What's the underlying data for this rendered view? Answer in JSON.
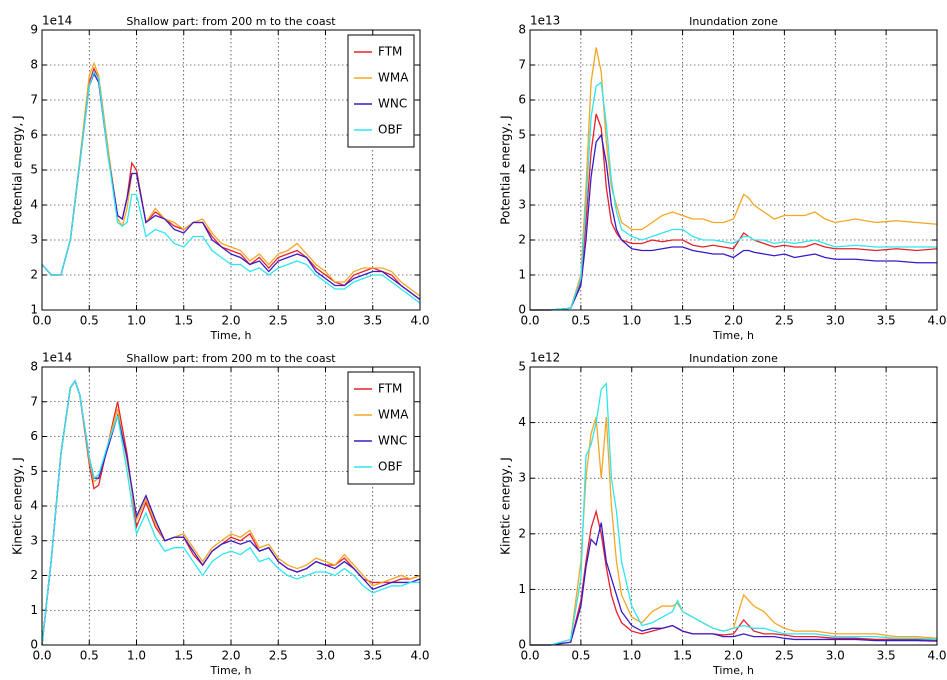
{
  "chart_data": [
    {
      "type": "line",
      "title": "Shallow part: from 200 m to the coast",
      "xlabel": "Time, h",
      "ylabel": "Potential energy, J",
      "y_offset": "1e14",
      "x": [
        0,
        0.1,
        0.2,
        0.3,
        0.4,
        0.5,
        0.55,
        0.6,
        0.7,
        0.8,
        0.85,
        0.9,
        0.95,
        1.0,
        1.1,
        1.2,
        1.3,
        1.4,
        1.5,
        1.6,
        1.7,
        1.8,
        1.9,
        2.0,
        2.1,
        2.2,
        2.3,
        2.4,
        2.5,
        2.6,
        2.7,
        2.8,
        2.9,
        3.0,
        3.1,
        3.2,
        3.3,
        3.4,
        3.5,
        3.6,
        3.7,
        3.8,
        3.9,
        4.0
      ],
      "series": [
        {
          "name": "FTM",
          "color": "#e8202a",
          "values": [
            2.3,
            2.0,
            2.0,
            3.0,
            5.2,
            7.5,
            7.9,
            7.6,
            5.5,
            3.7,
            3.6,
            4.2,
            5.2,
            5.0,
            3.5,
            3.8,
            3.6,
            3.4,
            3.3,
            3.5,
            3.5,
            3.1,
            2.8,
            2.7,
            2.6,
            2.3,
            2.5,
            2.2,
            2.5,
            2.6,
            2.7,
            2.5,
            2.2,
            2.0,
            1.8,
            1.7,
            2.0,
            2.1,
            2.2,
            2.1,
            2.0,
            1.7,
            1.5,
            1.3
          ]
        },
        {
          "name": "WMA",
          "color": "#f5a623",
          "values": [
            2.3,
            2.0,
            2.0,
            3.0,
            5.3,
            7.7,
            8.05,
            7.7,
            5.6,
            3.6,
            3.4,
            3.9,
            4.9,
            4.9,
            3.5,
            3.9,
            3.6,
            3.5,
            3.3,
            3.5,
            3.6,
            3.2,
            2.9,
            2.8,
            2.7,
            2.4,
            2.6,
            2.3,
            2.6,
            2.7,
            2.9,
            2.6,
            2.3,
            2.1,
            1.8,
            1.8,
            2.1,
            2.2,
            2.2,
            2.2,
            2.1,
            1.8,
            1.6,
            1.4
          ]
        },
        {
          "name": "WNC",
          "color": "#3a1ac8",
          "values": [
            2.3,
            2.0,
            2.0,
            3.0,
            5.2,
            7.4,
            7.75,
            7.5,
            5.4,
            3.7,
            3.6,
            4.2,
            4.9,
            4.9,
            3.5,
            3.7,
            3.6,
            3.3,
            3.2,
            3.5,
            3.5,
            3.0,
            2.8,
            2.6,
            2.5,
            2.3,
            2.4,
            2.1,
            2.4,
            2.5,
            2.6,
            2.5,
            2.1,
            1.9,
            1.7,
            1.7,
            1.9,
            2.0,
            2.1,
            2.1,
            1.9,
            1.7,
            1.5,
            1.3
          ]
        },
        {
          "name": "OBF",
          "color": "#2ee6f0",
          "values": [
            2.3,
            2.0,
            2.0,
            3.0,
            5.2,
            7.4,
            7.8,
            7.6,
            5.4,
            3.5,
            3.4,
            3.5,
            4.3,
            4.3,
            3.1,
            3.3,
            3.2,
            2.9,
            2.8,
            3.1,
            3.1,
            2.7,
            2.5,
            2.3,
            2.3,
            2.1,
            2.2,
            2.0,
            2.2,
            2.3,
            2.4,
            2.3,
            2.0,
            1.8,
            1.6,
            1.6,
            1.8,
            1.9,
            2.0,
            2.0,
            1.8,
            1.6,
            1.4,
            1.2
          ]
        }
      ],
      "xlim": [
        0,
        4
      ],
      "ylim": [
        1,
        9
      ],
      "xticks": [
        {
          "value": 0,
          "label": "0.0"
        },
        {
          "value": 0.5,
          "label": "0.5"
        },
        {
          "value": 1,
          "label": "1.0"
        },
        {
          "value": 1.5,
          "label": "1.5"
        },
        {
          "value": 2,
          "label": "2.0"
        },
        {
          "value": 2.5,
          "label": "2.5"
        },
        {
          "value": 3,
          "label": "3.0"
        },
        {
          "value": 3.5,
          "label": "3.5"
        },
        {
          "value": 4,
          "label": "4.0"
        }
      ],
      "yticks": [
        1,
        2,
        3,
        4,
        5,
        6,
        7,
        8,
        9
      ],
      "grid": true,
      "legend": "upper right"
    },
    {
      "type": "line",
      "title": "Inundation zone",
      "xlabel": "Time, h",
      "ylabel": "Potential energy, J",
      "y_offset": "1e13",
      "x": [
        0,
        0.2,
        0.4,
        0.5,
        0.55,
        0.6,
        0.65,
        0.7,
        0.75,
        0.8,
        0.85,
        0.9,
        1.0,
        1.1,
        1.2,
        1.3,
        1.4,
        1.5,
        1.6,
        1.7,
        1.8,
        1.9,
        2.0,
        2.1,
        2.15,
        2.2,
        2.3,
        2.4,
        2.5,
        2.6,
        2.7,
        2.8,
        2.9,
        3.0,
        3.2,
        3.4,
        3.6,
        3.8,
        4.0
      ],
      "series": [
        {
          "color": "#e8202a",
          "values": [
            0,
            0,
            0.05,
            0.8,
            2.5,
            4.5,
            5.6,
            5.2,
            3.5,
            2.5,
            2.2,
            2.0,
            1.9,
            1.9,
            2.0,
            1.95,
            2.0,
            2.0,
            1.85,
            1.8,
            1.85,
            1.8,
            1.75,
            2.2,
            2.1,
            2.0,
            1.9,
            1.8,
            1.85,
            1.8,
            1.8,
            1.9,
            1.8,
            1.75,
            1.75,
            1.7,
            1.75,
            1.7,
            1.75
          ]
        },
        {
          "color": "#f5a623",
          "values": [
            0,
            0,
            0.05,
            1.0,
            3.5,
            6.5,
            7.5,
            6.8,
            4.8,
            3.5,
            3.0,
            2.5,
            2.3,
            2.3,
            2.5,
            2.7,
            2.8,
            2.7,
            2.6,
            2.6,
            2.5,
            2.5,
            2.6,
            3.3,
            3.2,
            3.0,
            2.8,
            2.6,
            2.7,
            2.7,
            2.7,
            2.8,
            2.6,
            2.5,
            2.6,
            2.5,
            2.55,
            2.5,
            2.45
          ]
        },
        {
          "color": "#3a1ac8",
          "values": [
            0,
            0,
            0.05,
            0.7,
            2.0,
            3.8,
            4.8,
            5.0,
            4.2,
            3.0,
            2.3,
            2.0,
            1.75,
            1.7,
            1.7,
            1.75,
            1.8,
            1.8,
            1.7,
            1.65,
            1.6,
            1.6,
            1.5,
            1.7,
            1.7,
            1.65,
            1.6,
            1.55,
            1.6,
            1.5,
            1.55,
            1.6,
            1.5,
            1.45,
            1.45,
            1.4,
            1.4,
            1.35,
            1.35
          ]
        },
        {
          "color": "#2ee6f0",
          "values": [
            0,
            0,
            0.05,
            0.9,
            3.0,
            5.5,
            6.4,
            6.5,
            5.3,
            3.7,
            2.8,
            2.3,
            2.1,
            2.0,
            2.1,
            2.2,
            2.3,
            2.3,
            2.1,
            2.0,
            2.0,
            1.95,
            1.9,
            2.1,
            2.1,
            2.0,
            2.0,
            1.9,
            1.95,
            1.9,
            1.95,
            2.0,
            1.9,
            1.8,
            1.85,
            1.8,
            1.8,
            1.8,
            1.8
          ]
        }
      ],
      "xlim": [
        0,
        4
      ],
      "ylim": [
        0,
        8
      ],
      "xticks": [
        {
          "value": 0,
          "label": "0.0"
        },
        {
          "value": 0.5,
          "label": "0.5"
        },
        {
          "value": 1,
          "label": "1.0"
        },
        {
          "value": 1.5,
          "label": "1.5"
        },
        {
          "value": 2,
          "label": "2.0"
        },
        {
          "value": 2.5,
          "label": "2.5"
        },
        {
          "value": 3,
          "label": "3.0"
        },
        {
          "value": 3.5,
          "label": "3.5"
        },
        {
          "value": 4,
          "label": "4.0"
        }
      ],
      "yticks": [
        0,
        1,
        2,
        3,
        4,
        5,
        6,
        7,
        8
      ],
      "grid": true
    },
    {
      "type": "line",
      "title": "Shallow part: from 200 m to the coast",
      "xlabel": "Time, h",
      "ylabel": "Kinetic energy, J",
      "y_offset": "1e14",
      "x": [
        0,
        0.1,
        0.2,
        0.3,
        0.35,
        0.4,
        0.5,
        0.55,
        0.6,
        0.7,
        0.8,
        0.9,
        1.0,
        1.1,
        1.2,
        1.3,
        1.4,
        1.5,
        1.6,
        1.7,
        1.8,
        1.9,
        2.0,
        2.1,
        2.2,
        2.3,
        2.4,
        2.5,
        2.6,
        2.7,
        2.8,
        2.9,
        3.0,
        3.1,
        3.2,
        3.3,
        3.4,
        3.5,
        3.6,
        3.7,
        3.8,
        3.9,
        4.0
      ],
      "series": [
        {
          "name": "FTM",
          "color": "#e8202a",
          "values": [
            0,
            2.5,
            5.5,
            7.4,
            7.6,
            7.2,
            5.2,
            4.5,
            4.6,
            5.8,
            7.0,
            5.5,
            3.4,
            4.1,
            3.4,
            3.0,
            3.1,
            3.1,
            2.6,
            2.3,
            2.7,
            2.9,
            3.1,
            3.0,
            3.2,
            2.7,
            2.8,
            2.4,
            2.2,
            2.1,
            2.2,
            2.4,
            2.3,
            2.3,
            2.5,
            2.2,
            1.9,
            1.8,
            1.8,
            1.8,
            1.9,
            1.9,
            2.0
          ]
        },
        {
          "name": "WMA",
          "color": "#f5a623",
          "values": [
            0,
            2.5,
            5.5,
            7.4,
            7.6,
            7.2,
            5.3,
            4.7,
            4.8,
            5.8,
            6.8,
            5.3,
            3.6,
            4.2,
            3.5,
            3.0,
            3.1,
            3.2,
            2.8,
            2.4,
            2.8,
            3.0,
            3.2,
            3.1,
            3.3,
            2.8,
            2.9,
            2.5,
            2.3,
            2.2,
            2.3,
            2.5,
            2.4,
            2.3,
            2.6,
            2.3,
            2.0,
            1.7,
            1.8,
            1.9,
            2.0,
            1.9,
            2.0
          ]
        },
        {
          "name": "WNC",
          "color": "#3a1ac8",
          "values": [
            0,
            2.5,
            5.5,
            7.4,
            7.6,
            7.2,
            5.4,
            4.8,
            4.8,
            5.7,
            6.6,
            5.4,
            3.7,
            4.3,
            3.6,
            3.0,
            3.1,
            3.1,
            2.7,
            2.3,
            2.7,
            2.9,
            3.0,
            2.9,
            3.0,
            2.7,
            2.8,
            2.4,
            2.2,
            2.1,
            2.2,
            2.4,
            2.3,
            2.2,
            2.4,
            2.2,
            1.9,
            1.6,
            1.7,
            1.8,
            1.8,
            1.8,
            1.9
          ]
        },
        {
          "name": "OBF",
          "color": "#2ee6f0",
          "values": [
            0,
            2.5,
            5.5,
            7.4,
            7.6,
            7.2,
            5.4,
            4.8,
            4.9,
            5.8,
            6.6,
            5.0,
            3.2,
            3.8,
            3.1,
            2.7,
            2.8,
            2.8,
            2.4,
            2.0,
            2.4,
            2.6,
            2.7,
            2.6,
            2.8,
            2.4,
            2.5,
            2.2,
            2.0,
            1.9,
            2.0,
            2.1,
            2.1,
            2.0,
            2.2,
            2.0,
            1.7,
            1.5,
            1.6,
            1.7,
            1.7,
            1.8,
            1.8
          ]
        }
      ],
      "xlim": [
        0,
        4
      ],
      "ylim": [
        0,
        8
      ],
      "xticks": [
        {
          "value": 0,
          "label": "0.0"
        },
        {
          "value": 0.5,
          "label": "0.5"
        },
        {
          "value": 1,
          "label": "1.0"
        },
        {
          "value": 1.5,
          "label": "1.5"
        },
        {
          "value": 2,
          "label": "2.0"
        },
        {
          "value": 2.5,
          "label": "2.5"
        },
        {
          "value": 3,
          "label": "3.0"
        },
        {
          "value": 3.5,
          "label": "3.5"
        },
        {
          "value": 4,
          "label": "4.0"
        }
      ],
      "yticks": [
        0,
        1,
        2,
        3,
        4,
        5,
        6,
        7,
        8
      ],
      "grid": true,
      "legend": "upper right"
    },
    {
      "type": "line",
      "title": "Inundation zone",
      "xlabel": "Time, h",
      "ylabel": "Kinetic energy, J",
      "y_offset": "1e12",
      "x": [
        0,
        0.2,
        0.4,
        0.5,
        0.55,
        0.6,
        0.65,
        0.7,
        0.75,
        0.8,
        0.85,
        0.9,
        1.0,
        1.1,
        1.2,
        1.3,
        1.4,
        1.45,
        1.5,
        1.6,
        1.7,
        1.8,
        1.9,
        2.0,
        2.1,
        2.2,
        2.3,
        2.4,
        2.5,
        2.6,
        2.8,
        3.0,
        3.2,
        3.4,
        3.6,
        3.8,
        4.0
      ],
      "series": [
        {
          "color": "#e8202a",
          "values": [
            0,
            0,
            0.05,
            0.8,
            1.5,
            2.1,
            2.4,
            2.0,
            1.4,
            0.9,
            0.6,
            0.4,
            0.25,
            0.2,
            0.25,
            0.3,
            0.35,
            0.3,
            0.25,
            0.2,
            0.2,
            0.2,
            0.18,
            0.2,
            0.45,
            0.25,
            0.2,
            0.2,
            0.18,
            0.15,
            0.15,
            0.12,
            0.12,
            0.1,
            0.1,
            0.1,
            0.08
          ]
        },
        {
          "color": "#f5a623",
          "values": [
            0,
            0,
            0.1,
            1.5,
            3.0,
            3.8,
            4.1,
            3.0,
            4.1,
            2.5,
            1.5,
            0.9,
            0.5,
            0.4,
            0.6,
            0.7,
            0.7,
            0.75,
            0.6,
            0.5,
            0.4,
            0.3,
            0.25,
            0.3,
            0.9,
            0.7,
            0.6,
            0.4,
            0.3,
            0.25,
            0.25,
            0.2,
            0.2,
            0.2,
            0.15,
            0.15,
            0.12
          ]
        },
        {
          "color": "#3a1ac8",
          "values": [
            0,
            0,
            0.05,
            0.7,
            1.4,
            1.9,
            1.8,
            2.2,
            1.5,
            1.2,
            0.9,
            0.6,
            0.35,
            0.25,
            0.3,
            0.3,
            0.35,
            0.3,
            0.25,
            0.2,
            0.2,
            0.2,
            0.15,
            0.15,
            0.2,
            0.15,
            0.15,
            0.15,
            0.12,
            0.1,
            0.1,
            0.1,
            0.1,
            0.08,
            0.08,
            0.08,
            0.07
          ]
        },
        {
          "color": "#2ee6f0",
          "values": [
            0,
            0,
            0.1,
            1.2,
            3.4,
            3.6,
            4.0,
            4.6,
            4.7,
            3.0,
            2.4,
            1.5,
            0.7,
            0.35,
            0.4,
            0.5,
            0.6,
            0.8,
            0.6,
            0.5,
            0.4,
            0.3,
            0.25,
            0.3,
            0.35,
            0.3,
            0.3,
            0.25,
            0.2,
            0.2,
            0.2,
            0.15,
            0.15,
            0.15,
            0.12,
            0.12,
            0.1
          ]
        }
      ],
      "xlim": [
        0,
        4
      ],
      "ylim": [
        0,
        5
      ],
      "xticks": [
        {
          "value": 0,
          "label": "0.0"
        },
        {
          "value": 0.5,
          "label": "0.5"
        },
        {
          "value": 1,
          "label": "1.0"
        },
        {
          "value": 1.5,
          "label": "1.5"
        },
        {
          "value": 2,
          "label": "2.0"
        },
        {
          "value": 2.5,
          "label": "2.5"
        },
        {
          "value": 3,
          "label": "3.0"
        },
        {
          "value": 3.5,
          "label": "3.5"
        },
        {
          "value": 4,
          "label": "4.0"
        }
      ],
      "yticks": [
        0,
        1,
        2,
        3,
        4,
        5
      ],
      "grid": true
    }
  ]
}
